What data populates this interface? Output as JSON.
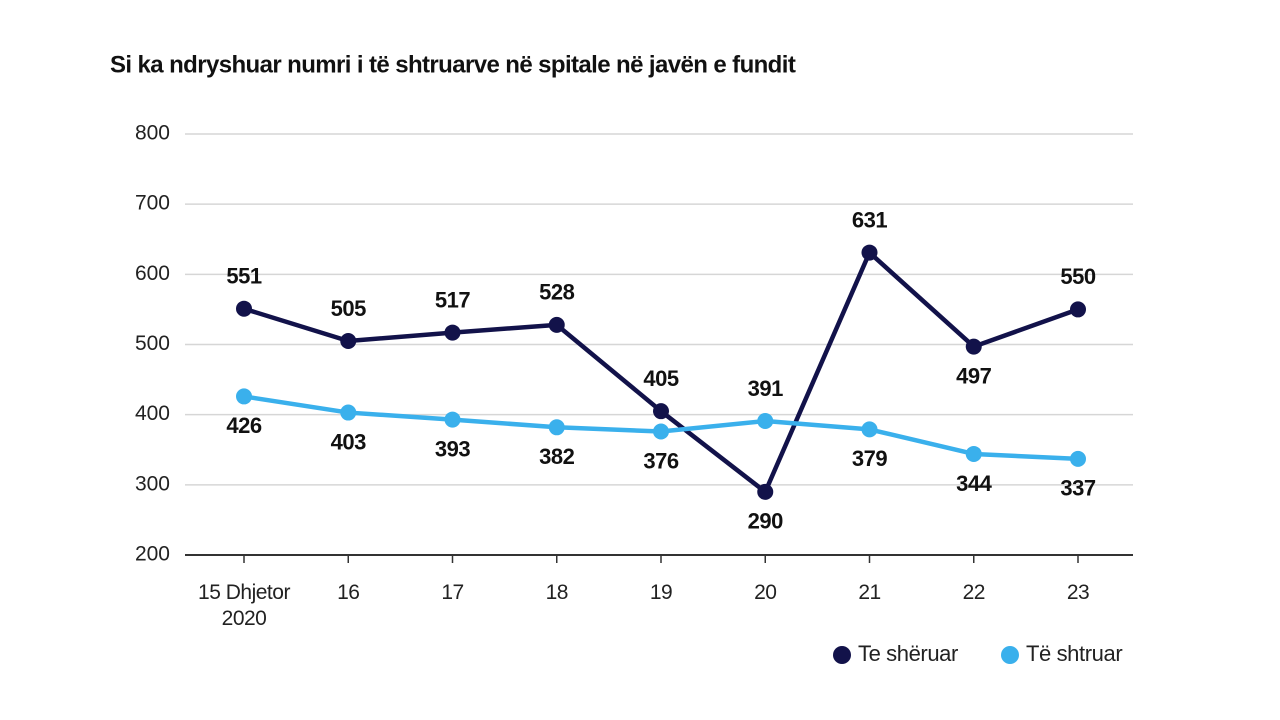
{
  "chart_data": {
    "type": "line",
    "title": "Si ka ndryshuar numri i të shtruarve në spitale në javën e fundit",
    "categories": [
      "15 Dhjetor 2020",
      "16",
      "17",
      "18",
      "19",
      "20",
      "21",
      "22",
      "23"
    ],
    "series": [
      {
        "name": "Te shëruar",
        "color": "#12124a",
        "values": [
          551,
          505,
          517,
          528,
          405,
          290,
          631,
          497,
          550
        ]
      },
      {
        "name": "Të shtruar",
        "color": "#3ab0ec",
        "values": [
          426,
          403,
          393,
          382,
          376,
          391,
          379,
          344,
          337
        ]
      }
    ],
    "ylim": [
      200,
      800
    ],
    "yticks": [
      200,
      300,
      400,
      500,
      600,
      700,
      800
    ],
    "grid": true,
    "legend": "bottom-right"
  }
}
